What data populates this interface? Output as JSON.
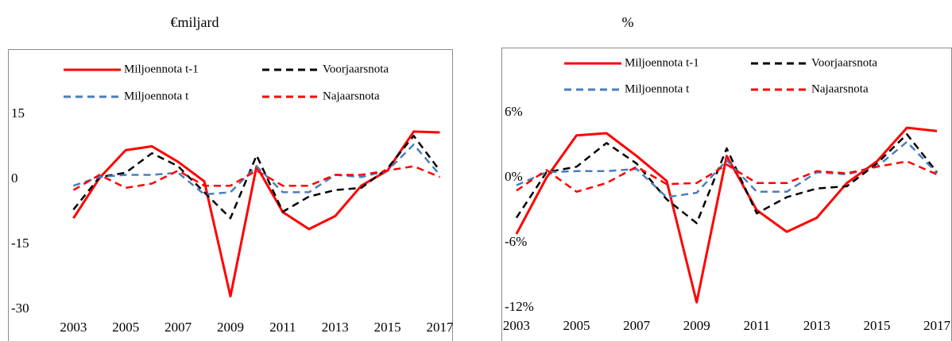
{
  "chart_data": [
    {
      "type": "line",
      "title": "€miljard",
      "x": [
        2003,
        2004,
        2005,
        2006,
        2007,
        2008,
        2009,
        2010,
        2011,
        2012,
        2013,
        2014,
        2015,
        2016,
        2017
      ],
      "xlim": [
        2000.5,
        2017.5
      ],
      "xticks": [
        2003,
        2005,
        2007,
        2009,
        2011,
        2013,
        2015,
        2017
      ],
      "ylim": [
        -30,
        30
      ],
      "yticks": [
        -30,
        -15,
        0,
        15
      ],
      "grid": false,
      "series": [
        {
          "name": "Miljoennota t-1",
          "color": "#ff0000",
          "style": "solid",
          "values": [
            -9,
            0.3,
            6.7,
            7.6,
            4,
            -0.5,
            -27,
            3,
            -7.6,
            -11.5,
            -8.5,
            -1.5,
            2,
            11,
            10.8
          ]
        },
        {
          "name": "Voorjaarsnota",
          "color": "#000000",
          "style": "dashed",
          "values": [
            -7,
            0.5,
            1.5,
            6,
            3,
            -3,
            -9,
            5.5,
            -7.5,
            -4,
            -2.5,
            -2,
            2.5,
            10,
            2
          ]
        },
        {
          "name": "Miljoennota t",
          "color": "#4a7ebb",
          "style": "dashed",
          "values": [
            -1.5,
            0.5,
            1,
            1,
            1.5,
            -3.5,
            -3,
            3,
            -3,
            -3,
            1,
            0.5,
            2,
            8,
            1
          ]
        },
        {
          "name": "Najaarsnota",
          "color": "#ff0000",
          "style": "dashed",
          "values": [
            -2.5,
            1,
            -2,
            -1,
            2,
            -1.5,
            -1.5,
            2,
            -1.5,
            -1.5,
            1,
            1,
            2,
            3,
            0.5
          ]
        }
      ]
    },
    {
      "type": "line",
      "title": "%",
      "x": [
        2003,
        2004,
        2005,
        2006,
        2007,
        2008,
        2009,
        2010,
        2011,
        2012,
        2013,
        2014,
        2015,
        2016,
        2017
      ],
      "xlim": [
        2002.5,
        2017.5
      ],
      "xticks": [
        2003,
        2005,
        2007,
        2009,
        2011,
        2013,
        2015,
        2017
      ],
      "ylim": [
        -12,
        12
      ],
      "yticks": [
        {
          "value": -12,
          "label": "-12%"
        },
        {
          "value": -6,
          "label": "-6%"
        },
        {
          "value": 0,
          "label": "0%"
        },
        {
          "value": 6,
          "label": "6%"
        }
      ],
      "grid": false,
      "series": [
        {
          "name": "Miljoennota t-1",
          "color": "#ff0000",
          "style": "solid",
          "values": [
            -5.2,
            0,
            3.9,
            4.1,
            2,
            -0.3,
            -11.5,
            2,
            -3,
            -5,
            -3.7,
            -0.5,
            1.5,
            4.6,
            4.3
          ]
        },
        {
          "name": "Voorjaarsnota",
          "color": "#000000",
          "style": "dashed",
          "values": [
            -3.7,
            0.5,
            1,
            3.2,
            1.3,
            -2,
            -4.2,
            2.7,
            -3.3,
            -1.8,
            -1,
            -0.8,
            1.3,
            4,
            0.5
          ]
        },
        {
          "name": "Miljoennota t",
          "color": "#4a7ebb",
          "style": "dashed",
          "values": [
            -0.7,
            0.5,
            0.6,
            0.6,
            0.8,
            -1.8,
            -1.4,
            1.6,
            -1.3,
            -1.3,
            0.5,
            0.3,
            1,
            3.3,
            0.4
          ]
        },
        {
          "name": "Najaarsnota",
          "color": "#ff0000",
          "style": "dashed",
          "values": [
            -1.2,
            0.7,
            -1.3,
            -0.5,
            1,
            -0.6,
            -0.5,
            1.2,
            -0.5,
            -0.5,
            0.6,
            0.4,
            1,
            1.5,
            0.3
          ]
        }
      ]
    }
  ]
}
